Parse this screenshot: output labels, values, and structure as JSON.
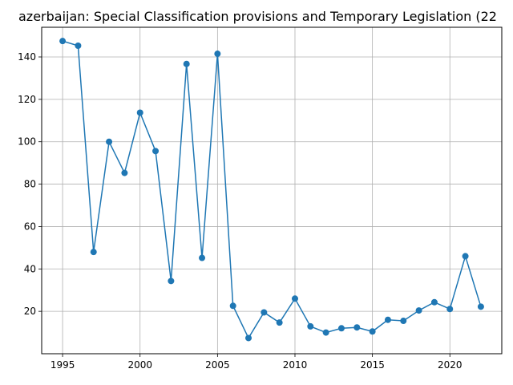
{
  "chart_data": {
    "type": "line",
    "title": "azerbaijan: Special Classification provisions and Temporary Legislation (22",
    "xlabel": "",
    "ylabel": "",
    "xlim": [
      1993.65,
      2023.35
    ],
    "ylim": [
      0,
      154
    ],
    "grid": true,
    "x_ticks": [
      1995,
      2000,
      2005,
      2010,
      2015,
      2020
    ],
    "y_ticks": [
      20,
      40,
      60,
      80,
      100,
      120,
      140
    ],
    "colors": {
      "series": "#1f77b4",
      "grid": "#b0b0b0",
      "axes": "#000000"
    },
    "series": [
      {
        "x": [
          1995,
          1996,
          1997,
          1998,
          1999,
          2000,
          2001,
          2002,
          2003,
          2004,
          2005,
          2006,
          2007,
          2008,
          2009,
          2010,
          2011,
          2012,
          2013,
          2014,
          2015,
          2016,
          2017,
          2018,
          2019,
          2020,
          2021,
          2022
        ],
        "y": [
          147.5,
          145.3,
          48,
          100,
          85.3,
          113.7,
          95.6,
          34.3,
          136.7,
          45.2,
          141.5,
          22.6,
          7.4,
          19.5,
          14.7,
          26,
          12.9,
          10,
          12,
          12.4,
          10.5,
          16,
          15.5,
          20.4,
          24.3,
          21.1,
          46,
          22.2
        ]
      }
    ]
  }
}
